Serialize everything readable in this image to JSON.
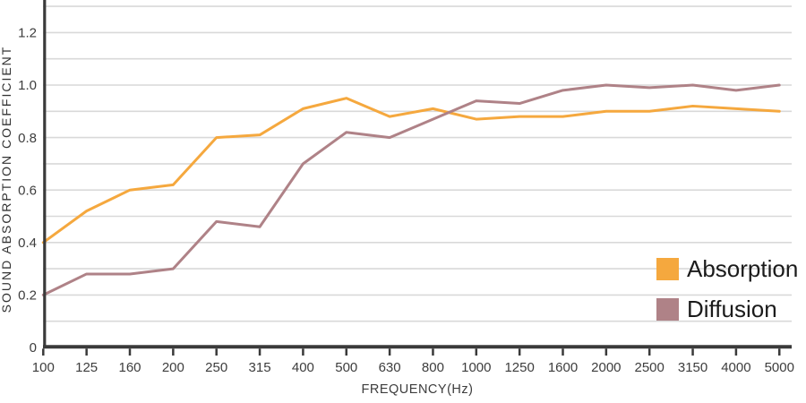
{
  "chart_data": {
    "type": "line",
    "title": "",
    "xlabel": "FREQUENCY(Hz)",
    "ylabel": "SOUND ABSORPTION COEFFICIENT",
    "categories": [
      "100",
      "125",
      "160",
      "200",
      "250",
      "315",
      "400",
      "500",
      "630",
      "800",
      "1000",
      "1250",
      "1600",
      "2000",
      "2500",
      "3150",
      "4000",
      "5000"
    ],
    "ylim": [
      0,
      1.32
    ],
    "grid": true,
    "grid_step": 0.1,
    "ytick_values": [
      0,
      0.2,
      0.4,
      0.6,
      0.8,
      1.0,
      1.2
    ],
    "ytick_labels": [
      "0",
      "0.2",
      "0.4",
      "0.6",
      "0.8",
      "1.0",
      "1.2"
    ],
    "legend_position": "inside-right",
    "series": [
      {
        "name": "Absorption",
        "color": "#F5A83E",
        "values": [
          0.4,
          0.52,
          0.6,
          0.62,
          0.8,
          0.81,
          0.91,
          0.95,
          0.88,
          0.91,
          0.87,
          0.88,
          0.88,
          0.9,
          0.9,
          0.92,
          0.91,
          0.9
        ]
      },
      {
        "name": "Diffusion",
        "color": "#AF8287",
        "values": [
          0.2,
          0.28,
          0.28,
          0.3,
          0.48,
          0.46,
          0.7,
          0.82,
          0.8,
          0.87,
          0.94,
          0.93,
          0.98,
          1.0,
          0.99,
          1.0,
          0.98,
          1.0
        ]
      }
    ]
  },
  "colors": {
    "background": "#FFFFFF",
    "axis": "#3A3A3A",
    "grid": "#D9D9D9",
    "tick_text": "#3D3D3D"
  }
}
